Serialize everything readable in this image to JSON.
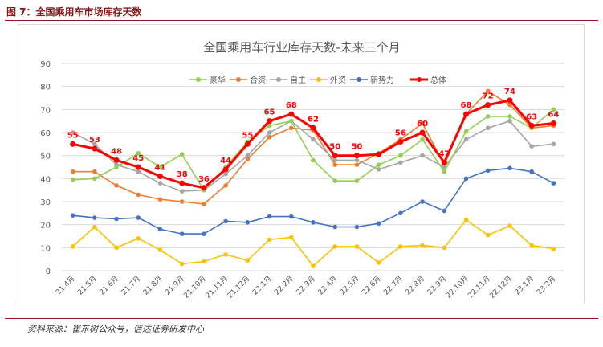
{
  "figure_title": "图 7：全国乘用车市场库存天数",
  "source_note": "资料来源：崔东树公众号，信达证券研发中心",
  "colors": {
    "title_accent": "#8b1a1a",
    "豪华": "#92d050",
    "合资": "#ed7d31",
    "自主": "#a5a5a5",
    "外资": "#ffc000",
    "新势力": "#4472c4",
    "总体": "#ff0000"
  },
  "chart_data": {
    "type": "line",
    "title": "全国乘用车行业库存天数-未来三个月",
    "xlabel": "",
    "ylabel": "",
    "ylim": [
      0,
      90
    ],
    "yticks": [
      0,
      10,
      20,
      30,
      40,
      50,
      60,
      70,
      80,
      90
    ],
    "grid": true,
    "legend_position": "top",
    "categories": [
      "21.4月",
      "21.5月",
      "21.6月",
      "21.7月",
      "21.8月",
      "21.9月",
      "21.10月",
      "21.11月",
      "21.12月",
      "22.1月",
      "22.2月",
      "22.3月",
      "22.4月",
      "22.5月",
      "22.6月",
      "22.7月",
      "22.8月",
      "22.9月",
      "22.10月",
      "22.11月",
      "22.12月",
      "23.1月",
      "23.2月"
    ],
    "series": [
      {
        "name": "豪华",
        "values": [
          39.5,
          40,
          45,
          51,
          45,
          50.5,
          35,
          45,
          56,
          63,
          65,
          48,
          39,
          39,
          46,
          50,
          57,
          43,
          60.5,
          67,
          67,
          62,
          70
        ]
      },
      {
        "name": "合资",
        "values": [
          43,
          43,
          37,
          33,
          31,
          30,
          29,
          37,
          48.5,
          58,
          62,
          61,
          46,
          46,
          51,
          57,
          64,
          46,
          68,
          78,
          72,
          62,
          63
        ]
      },
      {
        "name": "自主",
        "values": [
          60,
          55,
          46,
          43,
          38,
          34.5,
          35,
          42,
          50,
          60,
          65,
          57,
          48,
          48,
          44,
          47,
          50,
          45,
          57,
          62,
          65,
          54,
          55
        ]
      },
      {
        "name": "外资",
        "values": [
          10.5,
          19,
          10,
          14,
          9,
          3,
          4,
          7,
          4.5,
          13.5,
          14.5,
          2,
          10.5,
          10.5,
          3.5,
          10.5,
          11,
          10,
          22,
          15.5,
          19.5,
          11,
          9.5
        ]
      },
      {
        "name": "新势力",
        "values": [
          24,
          23,
          22.5,
          23,
          18,
          16,
          16,
          21.5,
          21,
          23.5,
          23.5,
          21,
          19,
          19,
          20.5,
          25,
          30,
          26,
          40,
          43.5,
          44.5,
          43,
          38
        ]
      },
      {
        "name": "总体",
        "values": [
          55,
          53,
          48,
          45,
          41,
          38,
          36,
          44,
          55,
          65,
          68,
          62,
          50,
          50,
          50.5,
          56,
          60,
          47,
          68,
          72,
          74,
          63,
          64
        ]
      }
    ],
    "data_labels": {
      "series": "总体",
      "labels": [
        "55",
        "53",
        "48",
        "45",
        "41",
        "38",
        "36",
        "44",
        "55",
        "65",
        "68",
        "62",
        "50",
        "50",
        "",
        "56",
        "60",
        "47",
        "68",
        "72",
        "74",
        "63",
        "64"
      ]
    }
  }
}
